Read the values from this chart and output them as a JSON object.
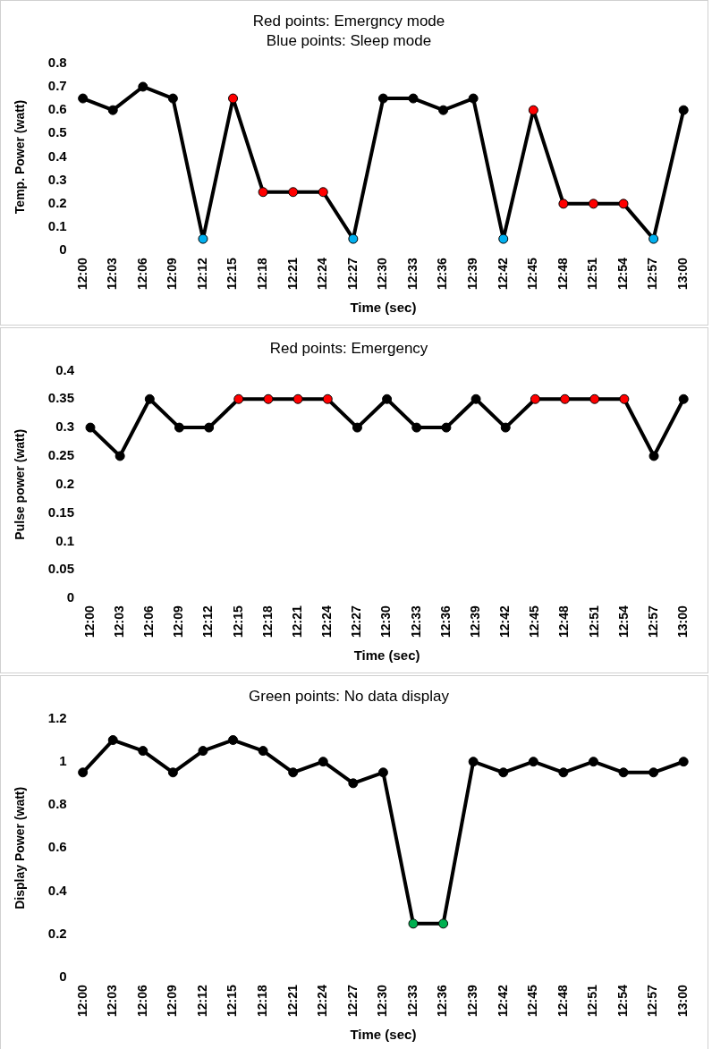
{
  "chart_data": [
    {
      "type": "line",
      "title": "Red points: Emergncy mode",
      "subtitle": "Blue points: Sleep mode",
      "xlabel": "Time (sec)",
      "ylabel": "Temp. Power (watt)",
      "categories": [
        "12:00",
        "12:03",
        "12:06",
        "12:09",
        "12:12",
        "12:15",
        "12:18",
        "12:21",
        "12:24",
        "12:27",
        "12:30",
        "12:33",
        "12:36",
        "12:39",
        "12:42",
        "12:45",
        "12:48",
        "12:51",
        "12:54",
        "12:57",
        "13:00"
      ],
      "series": [
        {
          "color": "#000000",
          "values": [
            0.65,
            0.6,
            0.7,
            0.65,
            0.05,
            0.65,
            0.25,
            0.25,
            0.25,
            0.05,
            0.65,
            0.65,
            0.6,
            0.65,
            0.05,
            0.6,
            0.2,
            0.2,
            0.2,
            0.05,
            0.6
          ],
          "colors": [
            "#000000",
            "#000000",
            "#000000",
            "#000000",
            "#00b0f0",
            "#ff0000",
            "#ff0000",
            "#ff0000",
            "#ff0000",
            "#00b0f0",
            "#000000",
            "#000000",
            "#000000",
            "#000000",
            "#00b0f0",
            "#ff0000",
            "#ff0000",
            "#ff0000",
            "#ff0000",
            "#00b0f0",
            "#000000"
          ]
        }
      ],
      "ylim": [
        0,
        0.8
      ],
      "yticks": [
        0,
        0.1,
        0.2,
        0.3,
        0.4,
        0.5,
        0.6,
        0.7,
        0.8
      ],
      "grid": false,
      "legend": false,
      "marker": "circle",
      "line_style": "solid"
    },
    {
      "type": "line",
      "title": "Red points: Emergency",
      "xlabel": "Time (sec)",
      "ylabel": "Pulse power (watt)",
      "categories": [
        "12:00",
        "12:03",
        "12:06",
        "12:09",
        "12:12",
        "12:15",
        "12:18",
        "12:21",
        "12:24",
        "12:27",
        "12:30",
        "12:33",
        "12:36",
        "12:39",
        "12:42",
        "12:45",
        "12:48",
        "12:51",
        "12:54",
        "12:57",
        "13:00"
      ],
      "series": [
        {
          "color": "#000000",
          "values": [
            0.3,
            0.25,
            0.35,
            0.3,
            0.3,
            0.35,
            0.35,
            0.35,
            0.35,
            0.3,
            0.35,
            0.3,
            0.3,
            0.35,
            0.3,
            0.35,
            0.35,
            0.35,
            0.35,
            0.25,
            0.35
          ],
          "colors": [
            "#000000",
            "#000000",
            "#000000",
            "#000000",
            "#000000",
            "#ff0000",
            "#ff0000",
            "#ff0000",
            "#ff0000",
            "#000000",
            "#000000",
            "#000000",
            "#000000",
            "#000000",
            "#000000",
            "#ff0000",
            "#ff0000",
            "#ff0000",
            "#ff0000",
            "#000000",
            "#000000"
          ]
        }
      ],
      "ylim": [
        0,
        0.4
      ],
      "yticks": [
        0,
        0.05,
        0.1,
        0.15,
        0.2,
        0.25,
        0.3,
        0.35,
        0.4
      ],
      "grid": false,
      "legend": false,
      "marker": "circle",
      "line_style": "solid"
    },
    {
      "type": "line",
      "title": "Green points: No data display",
      "xlabel": "Time (sec)",
      "ylabel": "Display Power (watt)",
      "categories": [
        "12:00",
        "12:03",
        "12:06",
        "12:09",
        "12:12",
        "12:15",
        "12:18",
        "12:21",
        "12:24",
        "12:27",
        "12:30",
        "12:33",
        "12:36",
        "12:39",
        "12:42",
        "12:45",
        "12:48",
        "12:51",
        "12:54",
        "12:57",
        "13:00"
      ],
      "series": [
        {
          "color": "#000000",
          "values": [
            0.95,
            1.1,
            1.05,
            0.95,
            1.05,
            1.1,
            1.05,
            0.95,
            1,
            0.9,
            0.95,
            0.25,
            0.25,
            1,
            0.95,
            1,
            0.95,
            1,
            0.95,
            0.95,
            1
          ],
          "colors": [
            "#000000",
            "#000000",
            "#000000",
            "#000000",
            "#000000",
            "#000000",
            "#000000",
            "#000000",
            "#000000",
            "#000000",
            "#000000",
            "#00b050",
            "#00b050",
            "#000000",
            "#000000",
            "#000000",
            "#000000",
            "#000000",
            "#000000",
            "#000000",
            "#000000"
          ]
        }
      ],
      "ylim": [
        0,
        1.2
      ],
      "yticks": [
        0,
        0.2,
        0.4,
        0.6,
        0.8,
        1,
        1.2
      ],
      "grid": false,
      "legend": false,
      "marker": "circle",
      "line_style": "solid"
    }
  ]
}
